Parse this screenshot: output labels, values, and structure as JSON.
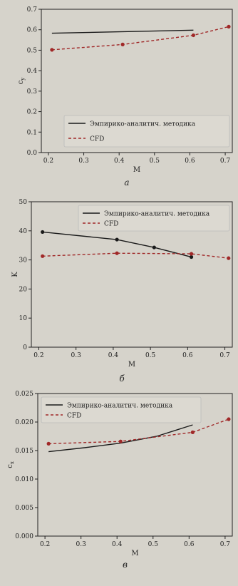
{
  "chart_data": [
    {
      "type": "line",
      "caption": "а",
      "xlabel": "M",
      "ylabel": "cy",
      "xlim": [
        0.18,
        0.72
      ],
      "ylim": [
        0.0,
        0.7
      ],
      "xticks": [
        "0.2",
        "0.3",
        "0.4",
        "0.5",
        "0.6",
        "0.7"
      ],
      "yticks": [
        "0.0",
        "0.1",
        "0.2",
        "0.3",
        "0.4",
        "0.5",
        "0.6",
        "0.7"
      ],
      "legend_position": "lower-right",
      "grid": false,
      "series": [
        {
          "name": "Эмпирико-аналитич. методика",
          "style": "solid",
          "color": "#1a1a1a",
          "markers": false,
          "x": [
            0.21,
            0.61
          ],
          "y": [
            0.583,
            0.598
          ]
        },
        {
          "name": "CFD",
          "style": "dashed",
          "color": "#a02828",
          "markers": true,
          "x": [
            0.21,
            0.41,
            0.61,
            0.71
          ],
          "y": [
            0.502,
            0.528,
            0.573,
            0.615
          ]
        }
      ]
    },
    {
      "type": "line",
      "caption": "б",
      "xlabel": "M",
      "ylabel": "K",
      "xlim": [
        0.18,
        0.72
      ],
      "ylim": [
        0,
        50
      ],
      "xticks": [
        "0.2",
        "0.3",
        "0.4",
        "0.5",
        "0.6",
        "0.7"
      ],
      "yticks": [
        "0",
        "10",
        "20",
        "30",
        "40",
        "50"
      ],
      "legend_position": "upper-right",
      "grid": false,
      "series": [
        {
          "name": "Эмпирико-аналитич. методика",
          "style": "solid",
          "color": "#1a1a1a",
          "markers": true,
          "x": [
            0.21,
            0.41,
            0.51,
            0.61
          ],
          "y": [
            39.6,
            37.0,
            34.3,
            31.0
          ]
        },
        {
          "name": "CFD",
          "style": "dashed",
          "color": "#a02828",
          "markers": true,
          "x": [
            0.21,
            0.41,
            0.61,
            0.71
          ],
          "y": [
            31.3,
            32.3,
            32.1,
            30.6
          ]
        }
      ]
    },
    {
      "type": "line",
      "caption": "в",
      "xlabel": "M",
      "ylabel": "cx",
      "xlim": [
        0.18,
        0.72
      ],
      "ylim": [
        0.0,
        0.025
      ],
      "xticks": [
        "0.2",
        "0.3",
        "0.4",
        "0.5",
        "0.6",
        "0.7"
      ],
      "yticks": [
        "0.000",
        "0.005",
        "0.010",
        "0.015",
        "0.020",
        "0.025"
      ],
      "legend_position": "upper-left",
      "grid": false,
      "series": [
        {
          "name": "Эмпирико-аналитич. методика",
          "style": "solid",
          "color": "#1a1a1a",
          "markers": false,
          "x": [
            0.21,
            0.31,
            0.41,
            0.51,
            0.61
          ],
          "y": [
            0.0148,
            0.0155,
            0.0163,
            0.0175,
            0.0195
          ]
        },
        {
          "name": "CFD",
          "style": "dashed",
          "color": "#a02828",
          "markers": true,
          "x": [
            0.21,
            0.41,
            0.61,
            0.71
          ],
          "y": [
            0.0162,
            0.0166,
            0.0182,
            0.0205
          ]
        }
      ]
    }
  ]
}
